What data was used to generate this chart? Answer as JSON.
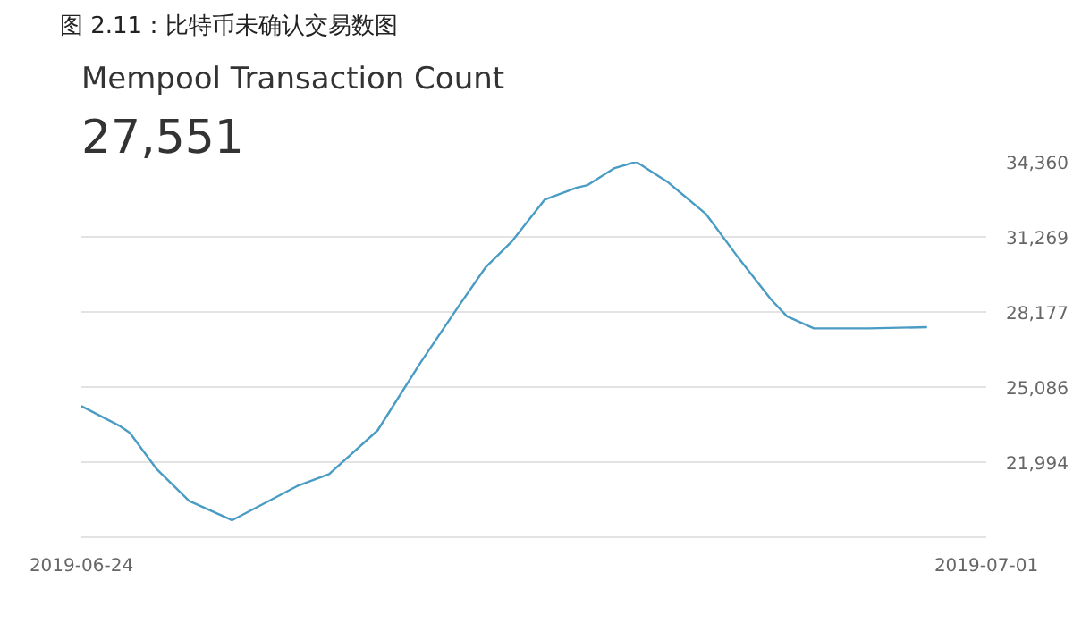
{
  "chart_data": {
    "type": "line",
    "title": "图 2.11：比特币未确认交易数图",
    "subtitle": "Mempool Transaction Count",
    "annotations": [
      "27,551"
    ],
    "x": [
      "2019-06-24T00:00",
      "2019-06-24T07:00",
      "2019-06-24T09:00",
      "2019-06-24T14:00",
      "2019-06-24T20:00",
      "2019-06-25T04:00",
      "2019-06-25T10:00",
      "2019-06-25T16:00",
      "2019-06-25T22:00",
      "2019-06-26T07:00",
      "2019-06-26T15:00",
      "2019-06-26T22:00",
      "2019-06-27T03:00",
      "2019-06-27T08:00",
      "2019-06-27T14:00",
      "2019-06-27T20:00",
      "2019-06-27T22:00",
      "2019-06-28T03:00",
      "2019-06-28T07:00",
      "2019-06-28T13:00",
      "2019-06-28T20:00",
      "2019-06-29T02:00",
      "2019-06-29T08:00",
      "2019-06-29T11:00",
      "2019-06-29T16:00",
      "2019-06-30T02:00",
      "2019-06-30T13:00"
    ],
    "series": [
      {
        "color": "#4a9cc4",
        "values": [
          24300,
          23500,
          23200,
          21700,
          20400,
          19600,
          20300,
          21000,
          21500,
          23300,
          26100,
          28400,
          30000,
          31100,
          32800,
          33300,
          33400,
          34100,
          34360,
          33500,
          32200,
          30400,
          28700,
          28000,
          27500,
          27500,
          27551
        ]
      }
    ],
    "xlim": [
      "2019-06-24",
      "2019-07-01"
    ],
    "xticks": [
      "2019-06-24",
      "2019-07-01"
    ],
    "ylim": [
      18902,
      34360
    ],
    "yticks": [
      {
        "value": 18902,
        "label": null
      },
      {
        "value": 21994,
        "label": "21,994"
      },
      {
        "value": 25086,
        "label": "25,086"
      },
      {
        "value": 28177,
        "label": "28,177"
      },
      {
        "value": 31269,
        "label": "31,269"
      },
      {
        "value": 34360,
        "label": "34,360"
      }
    ],
    "grid": "y",
    "line_style": "solid",
    "marker": "none"
  }
}
